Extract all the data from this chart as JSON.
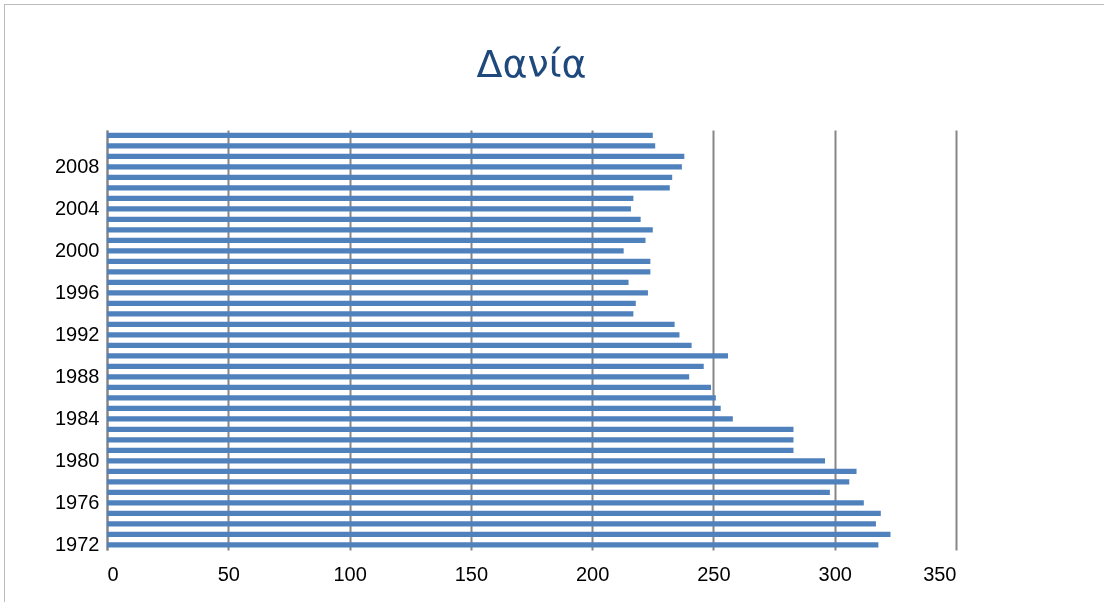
{
  "chart_data": {
    "type": "bar",
    "title": "Δανία",
    "orientation": "horizontal",
    "categories": [
      null,
      null,
      null,
      "2008",
      null,
      null,
      null,
      "2004",
      null,
      null,
      null,
      "2000",
      null,
      null,
      null,
      "1996",
      null,
      null,
      null,
      "1992",
      null,
      null,
      null,
      "1988",
      null,
      null,
      null,
      "1984",
      null,
      null,
      null,
      "1980",
      null,
      null,
      null,
      "1976",
      null,
      null,
      null,
      "1972"
    ],
    "values": [
      225,
      226,
      238,
      237,
      233,
      232,
      217,
      216,
      220,
      225,
      222,
      213,
      224,
      224,
      215,
      223,
      218,
      217,
      234,
      236,
      241,
      256,
      246,
      240,
      249,
      251,
      253,
      258,
      283,
      283,
      283,
      296,
      309,
      306,
      298,
      312,
      319,
      317,
      323,
      318
    ],
    "color": "#4f81bd",
    "xlim": [
      0,
      350
    ],
    "xticks": [
      0,
      50,
      100,
      150,
      200,
      250,
      300,
      350
    ],
    "grid": "x"
  }
}
